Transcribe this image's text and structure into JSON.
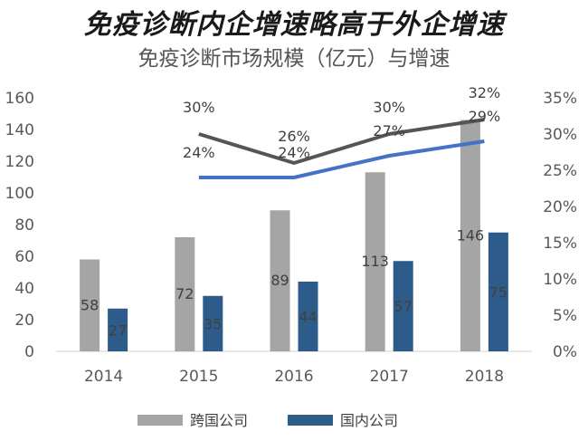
{
  "headline": "免疫诊断内企增速略高于外企增速",
  "chart_data": {
    "type": "bar",
    "title": "免疫诊断市场规模（亿元）与增速",
    "categories": [
      "2014",
      "2015",
      "2016",
      "2017",
      "2018"
    ],
    "ylim": [
      0,
      160
    ],
    "yticks": [
      0,
      20,
      40,
      60,
      80,
      100,
      120,
      140,
      160
    ],
    "y2lim": [
      0,
      35
    ],
    "y2ticks": [
      "0%",
      "5%",
      "10%",
      "15%",
      "20%",
      "25%",
      "30%",
      "35%"
    ],
    "grid": false,
    "legend_position": "bottom",
    "series": [
      {
        "name": "跨国公司",
        "type": "bar",
        "axis": "left",
        "color": "#a5a5a5",
        "values": [
          58,
          72,
          89,
          113,
          146
        ],
        "labels": [
          "58",
          "72",
          "89",
          "113",
          "146"
        ]
      },
      {
        "name": "国内公司",
        "type": "bar",
        "axis": "left",
        "color": "#2e5c8a",
        "values": [
          27,
          35,
          44,
          57,
          75
        ],
        "labels": [
          "27",
          "35",
          "44",
          "57",
          "75"
        ]
      },
      {
        "type": "line",
        "axis": "right",
        "color": "#555555",
        "values": [
          null,
          30,
          26,
          30,
          32
        ],
        "labels": [
          "",
          "30%",
          "26%",
          "30%",
          "32%"
        ]
      },
      {
        "type": "line",
        "axis": "right",
        "color": "#4472c4",
        "values": [
          null,
          24,
          24,
          27,
          29
        ],
        "labels": [
          "",
          "24%",
          "24%",
          "27%",
          "29%"
        ]
      }
    ]
  }
}
